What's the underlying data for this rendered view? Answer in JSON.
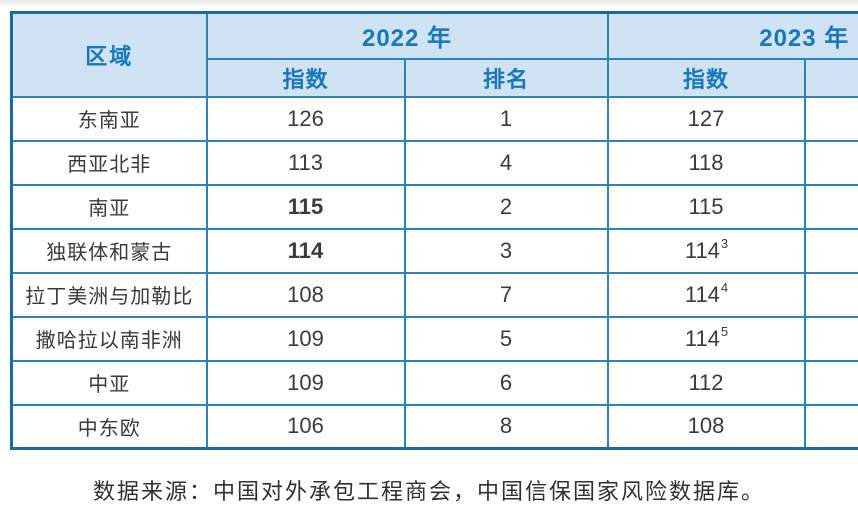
{
  "table": {
    "region_header": "区域",
    "year_groups": {
      "y2022": {
        "label": "2022 年"
      },
      "y2023": {
        "label": "2023 年"
      }
    },
    "subheaders": {
      "index_2022": "指数",
      "rank_2022": "排名",
      "index_2023": "指数"
    },
    "rows": [
      {
        "region": "东南亚",
        "index_2022": "126",
        "rank_2022": "1",
        "index_2023": "127"
      },
      {
        "region": "西亚北非",
        "index_2022": "113",
        "rank_2022": "4",
        "index_2023": "118"
      },
      {
        "region": "南亚",
        "index_2022": "115",
        "rank_2022": "2",
        "index_2023": "115"
      },
      {
        "region": "独联体和蒙古",
        "index_2022": "114",
        "rank_2022": "3",
        "index_2023": "114",
        "index_2023_footnote": "3"
      },
      {
        "region": "拉丁美洲与加勒比",
        "index_2022": "108",
        "rank_2022": "7",
        "index_2023": "114",
        "index_2023_footnote": "4"
      },
      {
        "region": "撒哈拉以南非洲",
        "index_2022": "109",
        "rank_2022": "5",
        "index_2023": "114",
        "index_2023_footnote": "5"
      },
      {
        "region": "中亚",
        "index_2022": "109",
        "rank_2022": "6",
        "index_2023": "112"
      },
      {
        "region": "中东欧",
        "index_2022": "106",
        "rank_2022": "8",
        "index_2023": "108"
      }
    ]
  },
  "footer": {
    "source_text": "数据来源：中国对外承包工程商会，中国信保国家风险数据库。"
  },
  "colors": {
    "border": "#2b83b9",
    "outer_border": "#1a6ba3",
    "header_fill": "#cfe3f4",
    "header_text": "#1878ba",
    "body_text": "#3b3b3b"
  }
}
